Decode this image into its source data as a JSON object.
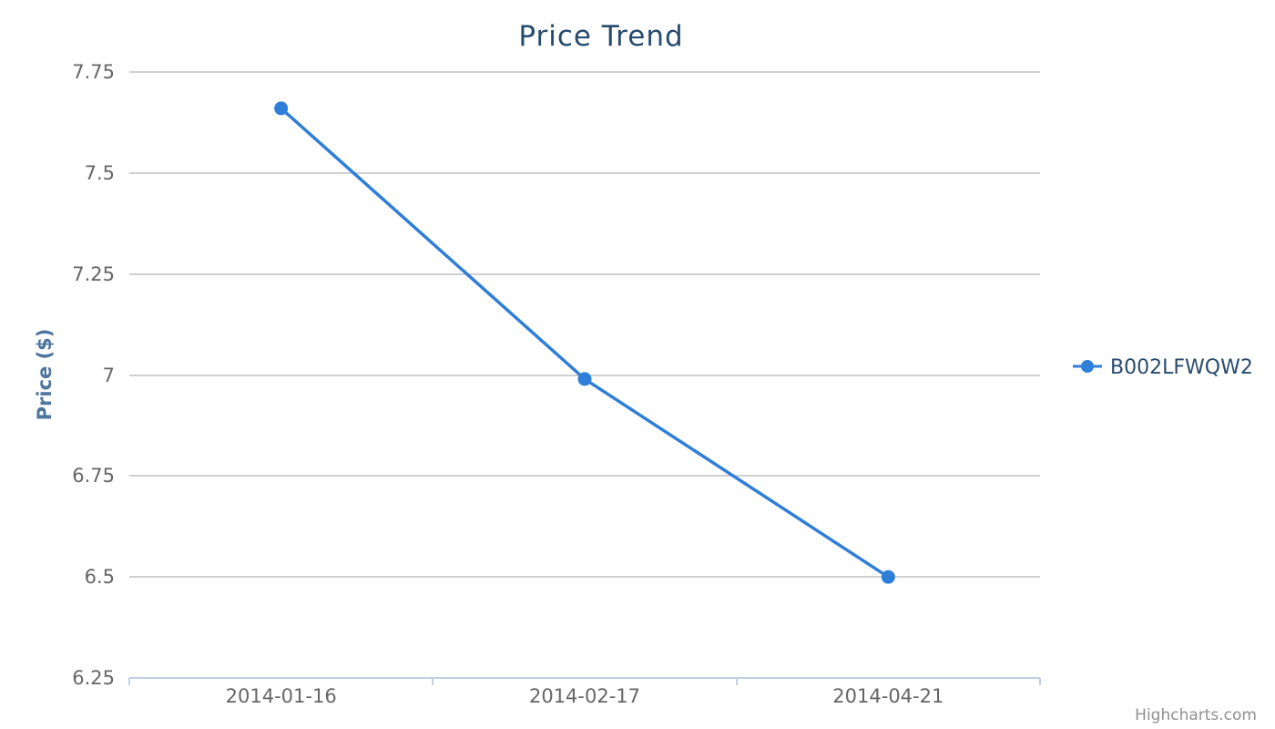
{
  "chart_data": {
    "type": "line",
    "title": "Price Trend",
    "xlabel": "",
    "ylabel": "Price ($)",
    "categories": [
      "2014-01-16",
      "2014-02-17",
      "2014-04-21"
    ],
    "series": [
      {
        "name": "B002LFWQW2",
        "values": [
          7.66,
          6.99,
          6.5
        ]
      }
    ],
    "ylim": [
      6.25,
      7.75
    ],
    "yticks": [
      "7.75",
      "7.5",
      "7.25",
      "7",
      "6.75",
      "6.5",
      "6.25"
    ],
    "grid": true,
    "legend_position": "right"
  },
  "credits": "Highcharts.com",
  "colors": {
    "series": "#2f7ed8",
    "title": "#274b6d",
    "axis_title": "#4d759e",
    "tick_label": "#666666",
    "grid": "#c0c0c0",
    "axis_line": "#c0d0e0",
    "credits": "#909090",
    "legend_text": "#274b6d"
  }
}
